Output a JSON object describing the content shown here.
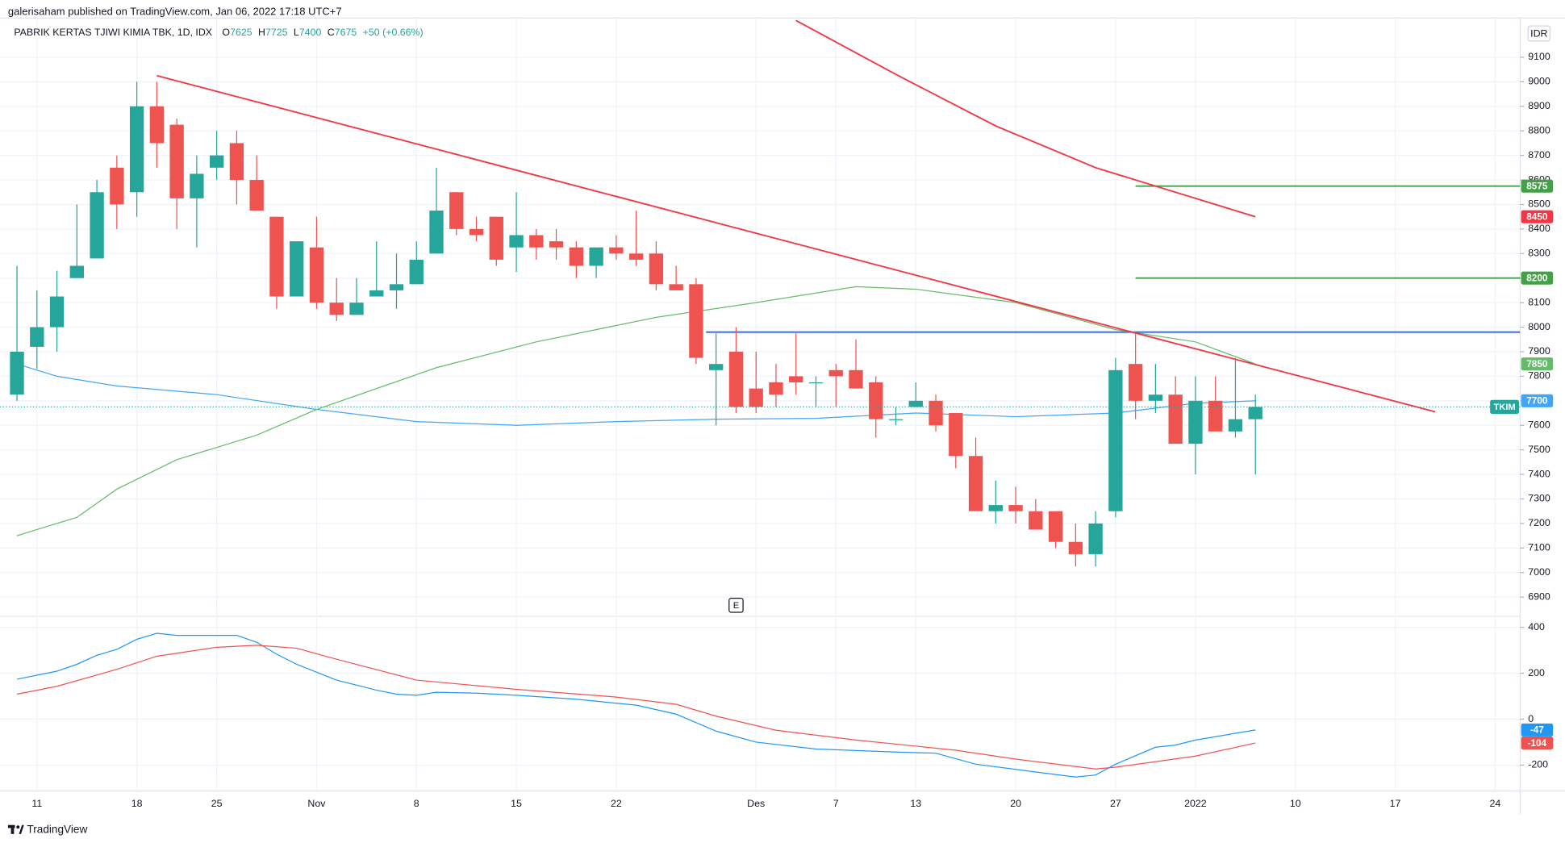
{
  "header": {
    "published": "galerisaham published on TradingView.com, Jan 06, 2022 17:18 UTC+7"
  },
  "footer": {
    "brand": "TradingView"
  },
  "chart_data": [
    {
      "type": "candlestick",
      "title": "PABRIK KERTAS TJIWI KIMIA TBK, 1D, IDX",
      "ohlc_letters": [
        "O",
        "H",
        "L",
        "C"
      ],
      "change": "+50 (+0.66%)",
      "symbol": "TKIM",
      "currency": "IDR",
      "events": [
        {
          "x": 36,
          "label": "E"
        }
      ],
      "up_color": "#26a69a",
      "down_color": "#ef5350",
      "categories": [
        null,
        "11",
        null,
        null,
        null,
        null,
        "18",
        null,
        null,
        null,
        "25",
        null,
        null,
        null,
        null,
        "Nov",
        null,
        null,
        null,
        null,
        "8",
        null,
        null,
        null,
        null,
        "15",
        null,
        null,
        null,
        null,
        "22",
        null,
        null,
        null,
        null,
        null,
        null,
        "Des",
        null,
        null,
        null,
        "7",
        null,
        null,
        null,
        "13",
        null,
        null,
        null,
        null,
        "20",
        null,
        null,
        null,
        null,
        "27",
        null,
        null,
        null,
        "2022",
        null,
        null,
        null,
        null,
        "10",
        null,
        null,
        null,
        null,
        "17",
        null,
        null,
        null,
        null,
        "24",
        null
      ],
      "open": [
        7725,
        7920,
        8000,
        8200,
        8280,
        8650,
        8550,
        8900,
        8825,
        8525,
        8650,
        8750,
        8600,
        8450,
        8125,
        8325,
        8100,
        8050,
        8125,
        8150,
        8175,
        8300,
        8550,
        8400,
        8450,
        8325,
        8375,
        8350,
        8325,
        8250,
        8325,
        8300,
        8300,
        8175,
        8175,
        7825,
        7900,
        7750,
        7775,
        7800,
        7775,
        7825,
        7825,
        7775,
        7625,
        7675,
        7700,
        7650,
        7475,
        7250,
        7275,
        7250,
        7250,
        7125,
        7075,
        7250,
        7850,
        7700,
        7725,
        7525,
        7700,
        7575,
        7625,
        null,
        null,
        null,
        null,
        null,
        null,
        null,
        null,
        null,
        null,
        null,
        null,
        null
      ],
      "high": [
        8250,
        8150,
        8230,
        8500,
        8600,
        8700,
        9000,
        9000,
        8850,
        8700,
        8800,
        8800,
        8700,
        8450,
        8350,
        8450,
        8200,
        8200,
        8350,
        8300,
        8350,
        8650,
        8550,
        8450,
        8450,
        8550,
        8400,
        8400,
        8350,
        8325,
        8375,
        8475,
        8350,
        8250,
        8200,
        7975,
        8000,
        7900,
        7850,
        7975,
        7800,
        7850,
        7950,
        7800,
        7675,
        7775,
        7725,
        7650,
        7550,
        7375,
        7350,
        7300,
        7250,
        7200,
        7250,
        7875,
        7975,
        7850,
        7800,
        7800,
        7800,
        7875,
        7725,
        null,
        null,
        null,
        null,
        null,
        null,
        null,
        null,
        null,
        null,
        null,
        null,
        null
      ],
      "low": [
        7700,
        7830,
        7900,
        8200,
        8280,
        8400,
        8450,
        8650,
        8400,
        8325,
        8600,
        8500,
        8475,
        8075,
        8125,
        8075,
        8025,
        8050,
        8125,
        8075,
        8175,
        8300,
        8375,
        8350,
        8250,
        8225,
        8275,
        8275,
        8200,
        8200,
        8275,
        8250,
        8150,
        8150,
        7850,
        7600,
        7650,
        7650,
        7675,
        7725,
        7675,
        7675,
        7750,
        7550,
        7600,
        7675,
        7575,
        7425,
        7250,
        7200,
        7200,
        7175,
        7100,
        7025,
        7025,
        7225,
        7625,
        7650,
        7525,
        7400,
        7575,
        7550,
        7400,
        null,
        null,
        null,
        null,
        null,
        null,
        null,
        null,
        null,
        null,
        null,
        null,
        null
      ],
      "close": [
        7900,
        8000,
        8125,
        8250,
        8550,
        8500,
        8900,
        8750,
        8525,
        8625,
        8700,
        8600,
        8475,
        8125,
        8350,
        8100,
        8050,
        8100,
        8150,
        8175,
        8275,
        8475,
        8400,
        8375,
        8275,
        8375,
        8325,
        8325,
        8250,
        8325,
        8300,
        8275,
        8175,
        8150,
        7875,
        7850,
        7675,
        7675,
        7725,
        7775,
        7775,
        7800,
        7750,
        7625,
        7625,
        7700,
        7600,
        7475,
        7250,
        7275,
        7250,
        7175,
        7125,
        7075,
        7200,
        7825,
        7700,
        7725,
        7525,
        7700,
        7575,
        7625,
        7675,
        null,
        null,
        null,
        null,
        null,
        null,
        null,
        null,
        null,
        null,
        null,
        null,
        null
      ],
      "ylim": [
        6830,
        9260
      ],
      "yticks": [
        6900,
        7000,
        7100,
        7200,
        7300,
        7400,
        7500,
        7600,
        7700,
        7800,
        7900,
        8000,
        8100,
        8200,
        8300,
        8400,
        8500,
        8600,
        8700,
        8800,
        8900,
        9000,
        9100
      ],
      "grid": true,
      "lines": [
        {
          "color": "#42a5f5",
          "badge": true,
          "x": [
            0,
            2,
            5,
            10,
            15,
            20,
            25,
            30,
            35,
            40,
            45,
            50,
            55,
            59,
            62
          ],
          "values": [
            7850,
            7800,
            7760,
            7725,
            7665,
            7615,
            7600,
            7615,
            7625,
            7628,
            7650,
            7635,
            7650,
            7690,
            7700
          ]
        },
        {
          "color": "#66bb6a",
          "badge": true,
          "x": [
            0,
            1,
            3,
            5,
            8,
            12,
            15,
            21,
            26,
            32,
            37,
            42,
            45,
            50,
            55,
            59,
            62
          ],
          "values": [
            7150,
            7175,
            7225,
            7340,
            7460,
            7560,
            7665,
            7835,
            7940,
            8040,
            8100,
            8165,
            8155,
            8100,
            7990,
            7940,
            7850
          ]
        },
        {
          "color": "#f23645",
          "badge": true,
          "x": [
            39,
            44,
            49,
            54,
            62
          ],
          "values": [
            9250,
            9030,
            8820,
            8650,
            8450
          ]
        },
        {
          "color": "#f23645",
          "badge": false,
          "x": [
            7,
            71
          ],
          "values": [
            9025,
            7655
          ]
        }
      ],
      "hlines": [
        {
          "value": 7980,
          "x_start": 34.5,
          "color": "#2962ff",
          "badge": false
        },
        {
          "value": 8575,
          "x_start": 56,
          "color": "#43a047",
          "badge": true
        },
        {
          "value": 8200,
          "x_start": 56,
          "color": "#43a047",
          "badge": true
        }
      ]
    },
    {
      "type": "line",
      "ylim": [
        -313,
        448
      ],
      "yticks": [
        -200,
        0,
        200,
        400
      ],
      "series": [
        {
          "color": "#2196f3",
          "x": [
            0,
            2,
            3,
            4,
            5,
            6,
            7,
            8,
            11,
            12,
            13,
            14,
            16,
            18,
            19,
            20,
            21,
            23,
            25,
            28,
            31,
            33,
            35,
            37,
            40,
            44,
            46,
            48,
            51,
            53,
            54,
            55,
            57,
            58,
            59,
            62
          ],
          "values": [
            174,
            209,
            239,
            278,
            304,
            348,
            374,
            365,
            365,
            335,
            283,
            239,
            170,
            126,
            109,
            104,
            117,
            113,
            104,
            87,
            61,
            22,
            -52,
            -100,
            -130,
            -143,
            -148,
            -196,
            -230,
            -252,
            -243,
            -196,
            -122,
            -113,
            -91,
            -47
          ]
        },
        {
          "color": "#ef5350",
          "x": [
            0,
            2,
            5,
            7,
            10,
            12,
            14,
            16,
            20,
            25,
            30,
            33,
            35,
            38,
            42,
            47,
            50,
            54,
            55,
            59,
            62
          ],
          "values": [
            109,
            143,
            217,
            274,
            313,
            322,
            309,
            261,
            170,
            130,
            96,
            65,
            13,
            -48,
            -91,
            -135,
            -174,
            -217,
            -209,
            -161,
            -104
          ]
        }
      ]
    }
  ]
}
